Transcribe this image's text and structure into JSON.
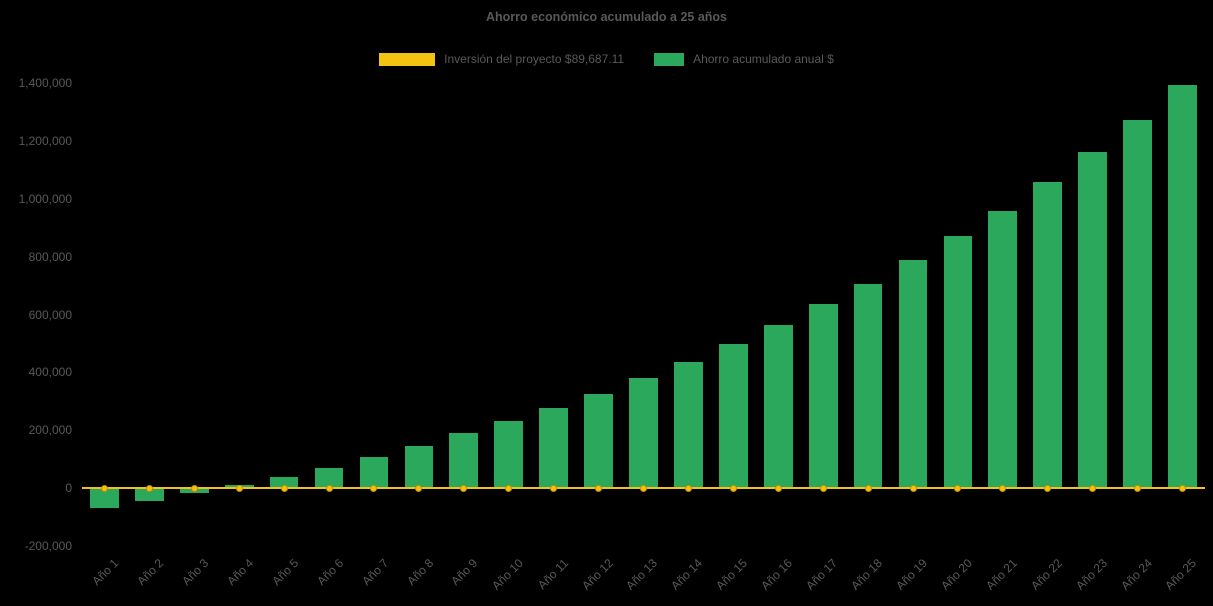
{
  "chart_data": {
    "type": "bar",
    "title": "Ahorro económico acumulado a 25 años",
    "background": "#000000",
    "text_color": "#595959",
    "grid": false,
    "legend_position": "top",
    "legend": [
      {
        "label": "Inversión del proyecto $89,687.11",
        "color": "#F2C311",
        "marker": "line"
      },
      {
        "label": "Ahorro acumulado anual $",
        "color": "#2BA85C",
        "marker": "bar"
      }
    ],
    "categories": [
      "Año 1",
      "Año 2",
      "Año 3",
      "Año 4",
      "Año 5",
      "Año 6",
      "Año 7",
      "Año 8",
      "Año 9",
      "Año 10",
      "Año 11",
      "Año 12",
      "Año 13",
      "Año 14",
      "Año 15",
      "Año 16",
      "Año 17",
      "Año 18",
      "Año 19",
      "Año 20",
      "Año 21",
      "Año 22",
      "Año 23",
      "Año 24",
      "Año 25"
    ],
    "series": [
      {
        "name": "Ahorro acumulado anual $",
        "type": "bar",
        "color": "#2BA85C",
        "values": [
          -70000,
          -44000,
          -16000,
          12000,
          40000,
          70000,
          108000,
          147000,
          190000,
          232000,
          278000,
          325000,
          380000,
          437000,
          497000,
          562000,
          635000,
          705000,
          788000,
          870000,
          958000,
          1058000,
          1160000,
          1272000,
          1393000
        ]
      },
      {
        "name": "Inversión del proyecto $89,687.11",
        "type": "line",
        "color": "#F2C311",
        "marker_border": "#C98F00",
        "constant_value": 0
      }
    ],
    "xlabel": "",
    "ylabel": "",
    "ylim": [
      -200000,
      1400000
    ],
    "ytick_step": 200000
  }
}
